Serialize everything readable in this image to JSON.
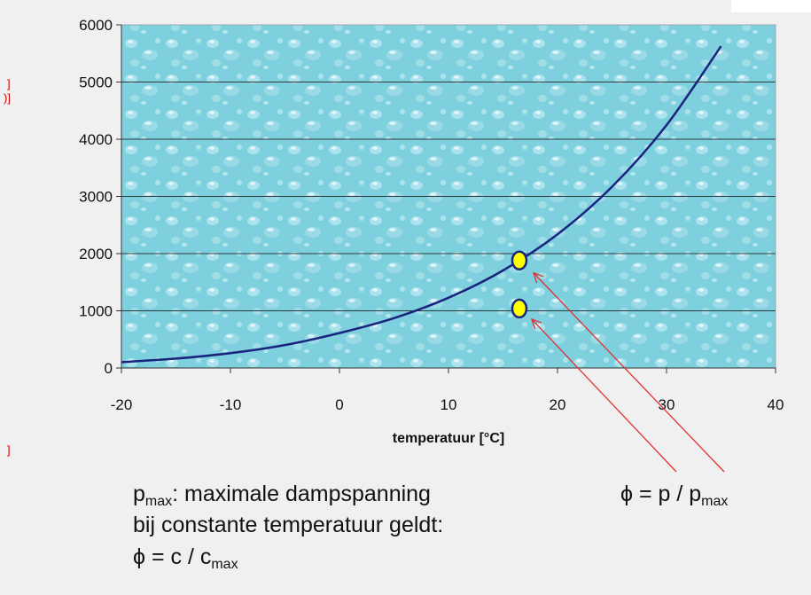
{
  "chart_data": {
    "type": "line",
    "xlabel": "temperatuur [°C]",
    "ylabel": "",
    "xlim": [
      -20,
      40
    ],
    "ylim": [
      0,
      6000
    ],
    "x_ticks": [
      "-20",
      "-10",
      "0",
      "10",
      "20",
      "30",
      "40"
    ],
    "y_ticks": [
      "0",
      "1000",
      "2000",
      "3000",
      "4000",
      "5000",
      "6000"
    ],
    "grid": "horizontal",
    "series": [
      {
        "x": [
          -20,
          -15,
          -10,
          -5,
          0,
          5,
          10,
          15,
          20,
          25,
          30,
          35
        ],
        "y": [
          103,
          165,
          260,
          401,
          611,
          872,
          1228,
          1705,
          2338,
          3169,
          4246,
          5627
        ],
        "color": "#1a237e"
      }
    ],
    "markers": [
      {
        "x": 16.5,
        "y": 1880,
        "color": "#ffff00"
      },
      {
        "x": 16.5,
        "y": 1040,
        "color": "#ffff00"
      }
    ],
    "arrow_color": "#e03030"
  },
  "page": {
    "edge_fragments": [
      "]",
      ")]",
      "]"
    ]
  },
  "caption": {
    "line1_sym": "p",
    "line1_sub": "max",
    "line1_rest": ": maximale dampspanning",
    "line2": "bij constante temperatuur geldt:",
    "line3_pre": "ϕ = c / c",
    "line3_sub": "max",
    "phi_pre": "ϕ = p / p",
    "phi_sub": "max"
  }
}
